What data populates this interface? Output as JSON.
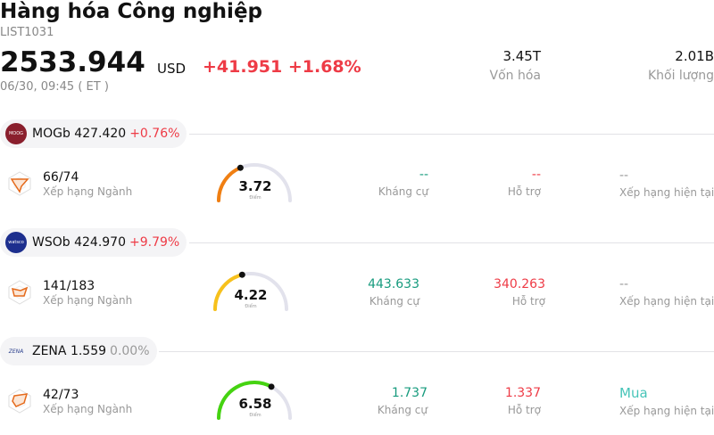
{
  "header": {
    "title": "Hàng hóa Công nghiệp",
    "code": "LIST1031",
    "price": "2533.944",
    "currency": "USD",
    "change": "+41.951 +1.68%",
    "time": "06/30, 09:45  ( ET )",
    "market_cap_value": "3.45T",
    "market_cap_label": "Vốn hóa",
    "volume_value": "2.01B",
    "volume_label": "Khối lượng"
  },
  "colors": {
    "up": "#ee3b46",
    "resistance": "#179b7e",
    "support": "#ee3b46",
    "neutral": "#999999",
    "buy": "#46c4b8"
  },
  "rows": [
    {
      "symbol": "MOGb",
      "price": "427.420",
      "pct": "+0.76%",
      "logo_text": "MOOG",
      "rank": "66/74",
      "rank_label": "Xếp hạng Ngành",
      "score": "3.72",
      "score_fraction": 0.372,
      "score_label": "Điểm",
      "resistance": "--",
      "resistance_label": "Kháng cự",
      "support": "--",
      "support_label": "Hỗ trợ",
      "rating": "--",
      "rating_label": "Xếp hạng hiện tại"
    },
    {
      "symbol": "WSOb",
      "price": "424.970",
      "pct": "+9.79%",
      "logo_text": "watsco",
      "rank": "141/183",
      "rank_label": "Xếp hạng Ngành",
      "score": "4.22",
      "score_fraction": 0.422,
      "score_label": "Điểm",
      "resistance": "443.633",
      "resistance_label": "Kháng cự",
      "support": "340.263",
      "support_label": "Hỗ trợ",
      "rating": "--",
      "rating_label": "Xếp hạng hiện tại"
    },
    {
      "symbol": "ZENA",
      "price": "1.559",
      "pct": "0.00%",
      "logo_text": "ZENA",
      "rank": "42/73",
      "rank_label": "Xếp hạng Ngành",
      "score": "6.58",
      "score_fraction": 0.658,
      "score_label": "Điểm",
      "resistance": "1.737",
      "resistance_label": "Kháng cự",
      "support": "1.337",
      "support_label": "Hỗ trợ",
      "rating": "Mua",
      "rating_label": "Xếp hạng hiện tại"
    }
  ]
}
